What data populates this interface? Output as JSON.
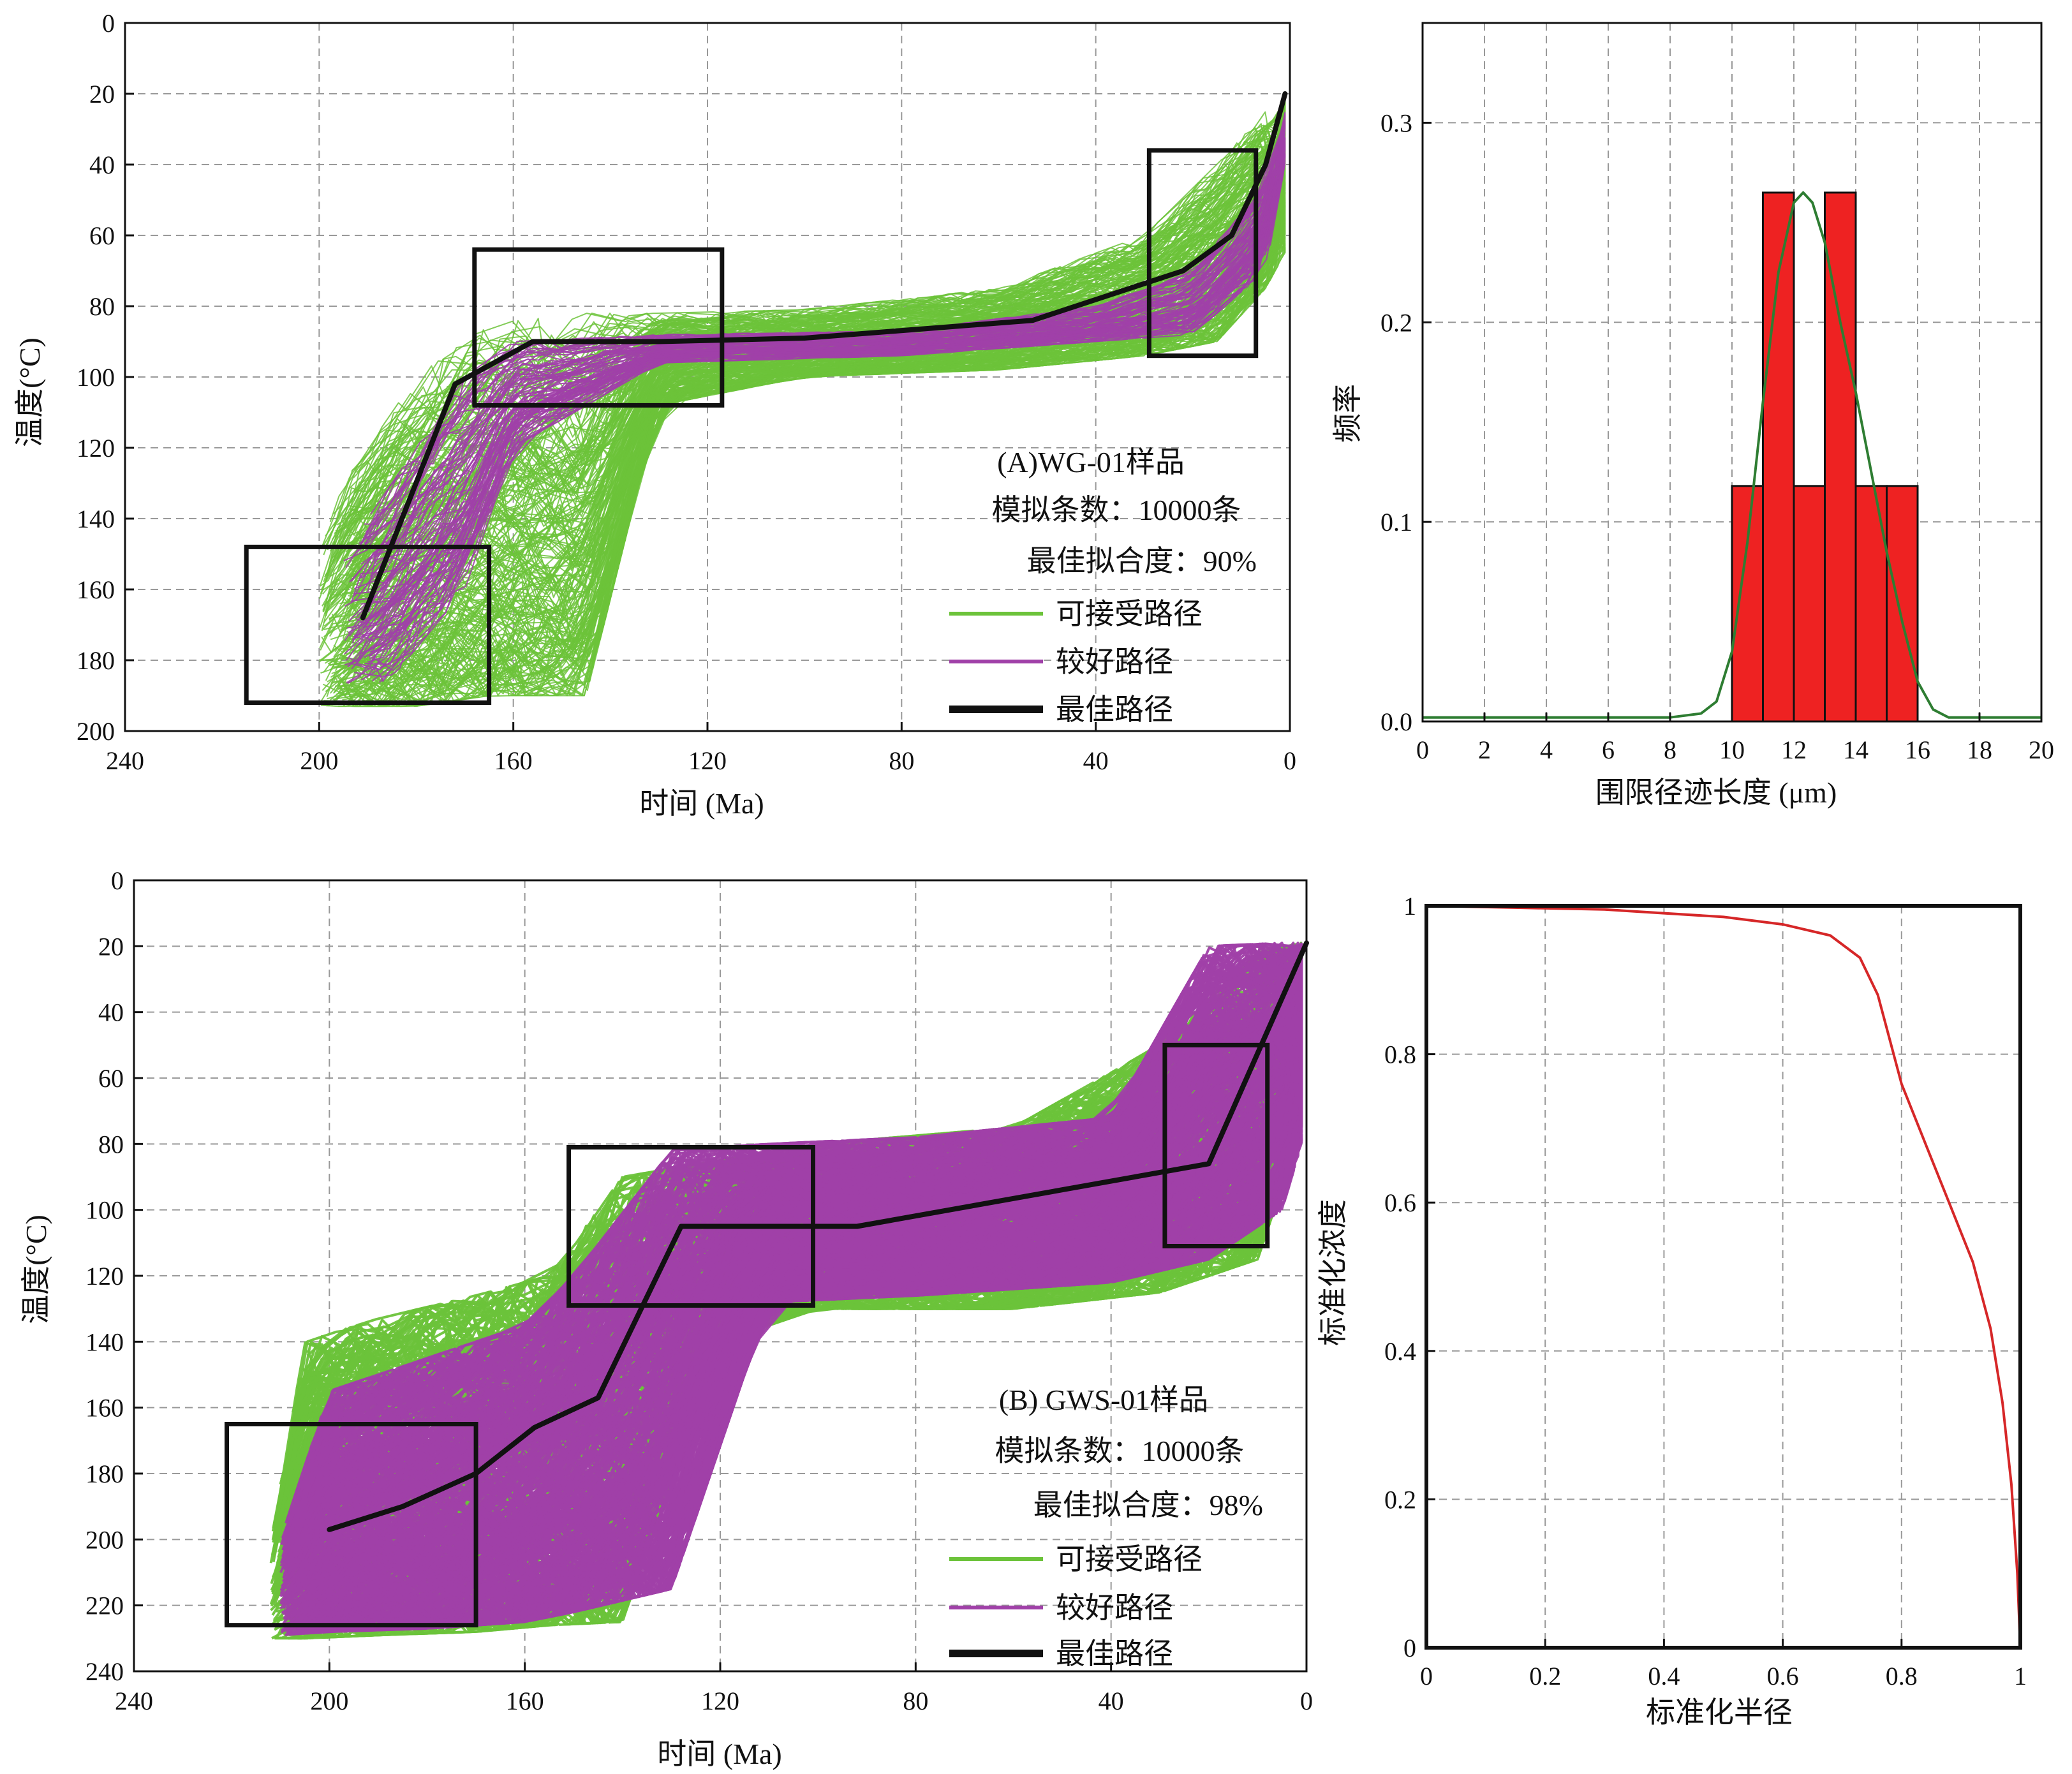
{
  "chart_data": [
    {
      "type": "line",
      "panel": "A",
      "xlabel": "时间 (Ma)",
      "ylabel": "温度(°C)",
      "xlim": [
        240,
        0
      ],
      "ylim": [
        200,
        0
      ],
      "x_ticks": [
        "240",
        "200",
        "160",
        "120",
        "80",
        "40",
        "0"
      ],
      "y_ticks": [
        "0",
        "20",
        "40",
        "60",
        "80",
        "100",
        "120",
        "140",
        "160",
        "180",
        "200"
      ],
      "grid": true,
      "annotations": [
        "(A)WG-01样品",
        "模拟条数：10000条",
        "最佳拟合度：90%"
      ],
      "legend": [
        {
          "label": "可接受路径",
          "color": "#6CC33A"
        },
        {
          "label": "较好路径",
          "color": "#A040A8"
        },
        {
          "label": "最佳路径",
          "color": "#111111"
        }
      ],
      "best_path": {
        "x": [
          191,
          172,
          156,
          130,
          100,
          53,
          22,
          12,
          5,
          1
        ],
        "y": [
          168,
          102,
          90,
          90,
          89,
          84,
          70,
          60,
          40,
          20
        ]
      },
      "constraint_boxes": [
        {
          "t": [
            215,
            165
          ],
          "T": [
            148,
            192
          ]
        },
        {
          "t": [
            168,
            117
          ],
          "T": [
            64,
            108
          ]
        },
        {
          "t": [
            29,
            7
          ],
          "T": [
            36,
            94
          ]
        }
      ],
      "acceptable_envelope": {
        "x": [
          200,
          195,
          180,
          165,
          145,
          130,
          100,
          60,
          30,
          15,
          5,
          1
        ],
        "T_min": [
          150,
          130,
          100,
          85,
          82,
          82,
          81,
          75,
          60,
          40,
          25,
          20
        ],
        "T_max": [
          193,
          193,
          193,
          190,
          190,
          108,
          100,
          98,
          94,
          90,
          75,
          65
        ]
      },
      "good_envelope": {
        "x": [
          195,
          185,
          170,
          160,
          130,
          80,
          40,
          20,
          5,
          1
        ],
        "T_min": [
          150,
          130,
          100,
          90,
          88,
          87,
          80,
          70,
          45,
          25
        ],
        "T_max": [
          190,
          185,
          160,
          120,
          96,
          94,
          90,
          88,
          70,
          40
        ]
      }
    },
    {
      "type": "bar",
      "panel": "histogram",
      "xlabel": "围限径迹长度 (μm)",
      "ylabel": "频率",
      "xlim": [
        0,
        20
      ],
      "ylim": [
        0,
        0.35
      ],
      "x_ticks": [
        "0",
        "2",
        "4",
        "6",
        "8",
        "10",
        "12",
        "14",
        "16",
        "18",
        "20"
      ],
      "y_ticks": [
        "0.0",
        "0.1",
        "0.2",
        "0.3"
      ],
      "grid": true,
      "bin_edges": [
        10,
        11,
        12,
        13,
        14,
        15,
        16
      ],
      "values": [
        0.118,
        0.265,
        0.118,
        0.265,
        0.118,
        0.118
      ],
      "bar_color": "#EE2222",
      "fit_curve": {
        "x": [
          0,
          8,
          9,
          9.5,
          10,
          10.5,
          11,
          11.5,
          12,
          12.3,
          12.6,
          13,
          13.5,
          14,
          14.5,
          15,
          15.5,
          16,
          16.5,
          17,
          20
        ],
        "y": [
          0.002,
          0.002,
          0.004,
          0.01,
          0.035,
          0.09,
          0.16,
          0.225,
          0.26,
          0.265,
          0.26,
          0.24,
          0.2,
          0.165,
          0.125,
          0.085,
          0.05,
          0.02,
          0.006,
          0.002,
          0.002
        ],
        "color": "#2E7D32"
      }
    },
    {
      "type": "line",
      "panel": "B",
      "xlabel": "时间 (Ma)",
      "ylabel": "温度(°C)",
      "xlim": [
        240,
        0
      ],
      "ylim": [
        240,
        0
      ],
      "x_ticks": [
        "240",
        "200",
        "160",
        "120",
        "80",
        "40",
        "0"
      ],
      "y_ticks": [
        "0",
        "20",
        "40",
        "60",
        "80",
        "100",
        "120",
        "140",
        "160",
        "180",
        "200",
        "220",
        "240"
      ],
      "grid": true,
      "annotations": [
        "(B) GWS-01样品",
        "模拟条数：10000条",
        "最佳拟合度：98%"
      ],
      "legend": [
        {
          "label": "可接受路径",
          "color": "#6CC33A"
        },
        {
          "label": "较好路径",
          "color": "#A040A8"
        },
        {
          "label": "最佳路径",
          "color": "#111111"
        }
      ],
      "best_path": {
        "x": [
          200,
          185,
          170,
          158,
          145,
          128,
          92,
          20,
          0
        ],
        "y": [
          197,
          190,
          180,
          166,
          157,
          105,
          105,
          86,
          19
        ]
      },
      "constraint_boxes": [
        {
          "t": [
            221,
            170
          ],
          "T": [
            165,
            226
          ]
        },
        {
          "t": [
            151,
            101
          ],
          "T": [
            81,
            129
          ]
        },
        {
          "t": [
            29,
            8
          ],
          "T": [
            50,
            111
          ]
        }
      ],
      "acceptable_envelope": {
        "x": [
          212,
          205,
          190,
          170,
          155,
          140,
          120,
          100,
          60,
          30,
          10,
          1
        ],
        "T_min": [
          200,
          140,
          133,
          126,
          120,
          90,
          85,
          80,
          75,
          50,
          22,
          19
        ],
        "T_max": [
          230,
          230,
          229,
          228,
          226,
          225,
          140,
          130,
          130,
          125,
          115,
          75
        ]
      },
      "good_envelope": {
        "x": [
          210,
          200,
          180,
          160,
          150,
          130,
          110,
          80,
          40,
          20,
          5,
          1
        ],
        "T_min": [
          200,
          155,
          145,
          135,
          120,
          82,
          80,
          78,
          72,
          20,
          19,
          19
        ],
        "T_max": [
          229,
          228,
          227,
          225,
          222,
          215,
          128,
          126,
          122,
          115,
          100,
          80
        ]
      }
    },
    {
      "type": "line",
      "panel": "profile",
      "xlabel": "标准化半径",
      "ylabel": "标准化浓度",
      "xlim": [
        0,
        1
      ],
      "ylim": [
        0,
        1
      ],
      "x_ticks": [
        "0",
        "0.2",
        "0.4",
        "0.6",
        "0.8",
        "1"
      ],
      "y_ticks": [
        "0",
        "0.2",
        "0.4",
        "0.6",
        "0.8",
        "1"
      ],
      "grid": true,
      "series": [
        {
          "color": "#D62728",
          "x": [
            0,
            0.3,
            0.5,
            0.6,
            0.68,
            0.73,
            0.76,
            0.78,
            0.8,
            0.84,
            0.88,
            0.92,
            0.95,
            0.97,
            0.985,
            0.995,
            1.0
          ],
          "y": [
            1.0,
            0.995,
            0.985,
            0.975,
            0.96,
            0.93,
            0.88,
            0.82,
            0.76,
            0.68,
            0.6,
            0.52,
            0.43,
            0.33,
            0.22,
            0.1,
            0.0
          ]
        }
      ]
    }
  ]
}
